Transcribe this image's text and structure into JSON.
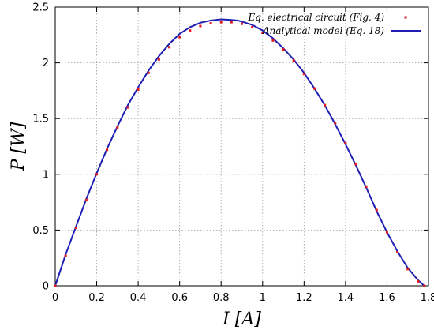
{
  "chart_data": {
    "type": "scatter",
    "xlabel": "I [A]",
    "ylabel": "P [W]",
    "xlim": [
      0,
      1.8
    ],
    "ylim": [
      0,
      2.5
    ],
    "xticks": [
      0,
      0.2,
      0.4,
      0.6,
      0.8,
      1,
      1.2,
      1.4,
      1.6,
      1.8
    ],
    "xtick_labels": [
      "0",
      "0.2",
      "0.4",
      "0.6",
      "0.8",
      "1",
      "1.2",
      "1.4",
      "1.6",
      "1.8"
    ],
    "yticks": [
      0,
      0.5,
      1,
      1.5,
      2,
      2.5
    ],
    "ytick_labels": [
      "0",
      "0.5",
      "1",
      "1.5",
      "2",
      "2.5"
    ],
    "grid": true,
    "legend_position": "top-right",
    "series": [
      {
        "name": "Eq. electrical circuit (Fig. 4)",
        "style": "points",
        "color": "#e41a1c",
        "x": [
          0,
          0.05,
          0.1,
          0.15,
          0.2,
          0.25,
          0.3,
          0.35,
          0.4,
          0.45,
          0.5,
          0.55,
          0.6,
          0.65,
          0.7,
          0.75,
          0.8,
          0.85,
          0.9,
          0.95,
          1,
          1.05,
          1.1,
          1.15,
          1.2,
          1.25,
          1.3,
          1.35,
          1.4,
          1.45,
          1.5,
          1.55,
          1.6,
          1.65,
          1.7,
          1.75,
          1.78
        ],
        "y": [
          0,
          0.27,
          0.52,
          0.77,
          1.0,
          1.22,
          1.42,
          1.6,
          1.76,
          1.91,
          2.03,
          2.14,
          2.23,
          2.29,
          2.33,
          2.355,
          2.365,
          2.365,
          2.35,
          2.32,
          2.27,
          2.2,
          2.12,
          2.02,
          1.9,
          1.77,
          1.62,
          1.46,
          1.28,
          1.09,
          0.89,
          0.68,
          0.48,
          0.3,
          0.15,
          0.04,
          0
        ]
      },
      {
        "name": "Analytical model (Eq. 18)",
        "style": "line",
        "color": "#1f1fb4",
        "x": [
          0,
          0.05,
          0.1,
          0.15,
          0.2,
          0.25,
          0.3,
          0.35,
          0.4,
          0.45,
          0.5,
          0.55,
          0.6,
          0.65,
          0.7,
          0.75,
          0.8,
          0.85,
          0.88,
          0.9,
          0.95,
          1,
          1.05,
          1.1,
          1.15,
          1.2,
          1.25,
          1.3,
          1.35,
          1.4,
          1.45,
          1.5,
          1.55,
          1.6,
          1.65,
          1.7,
          1.75,
          1.78
        ],
        "y": [
          0,
          0.28,
          0.53,
          0.78,
          1.01,
          1.23,
          1.43,
          1.62,
          1.78,
          1.93,
          2.06,
          2.17,
          2.26,
          2.32,
          2.36,
          2.38,
          2.39,
          2.385,
          2.38,
          2.37,
          2.34,
          2.29,
          2.22,
          2.13,
          2.03,
          1.91,
          1.77,
          1.62,
          1.45,
          1.27,
          1.08,
          0.88,
          0.67,
          0.48,
          0.31,
          0.16,
          0.05,
          0
        ]
      }
    ]
  }
}
